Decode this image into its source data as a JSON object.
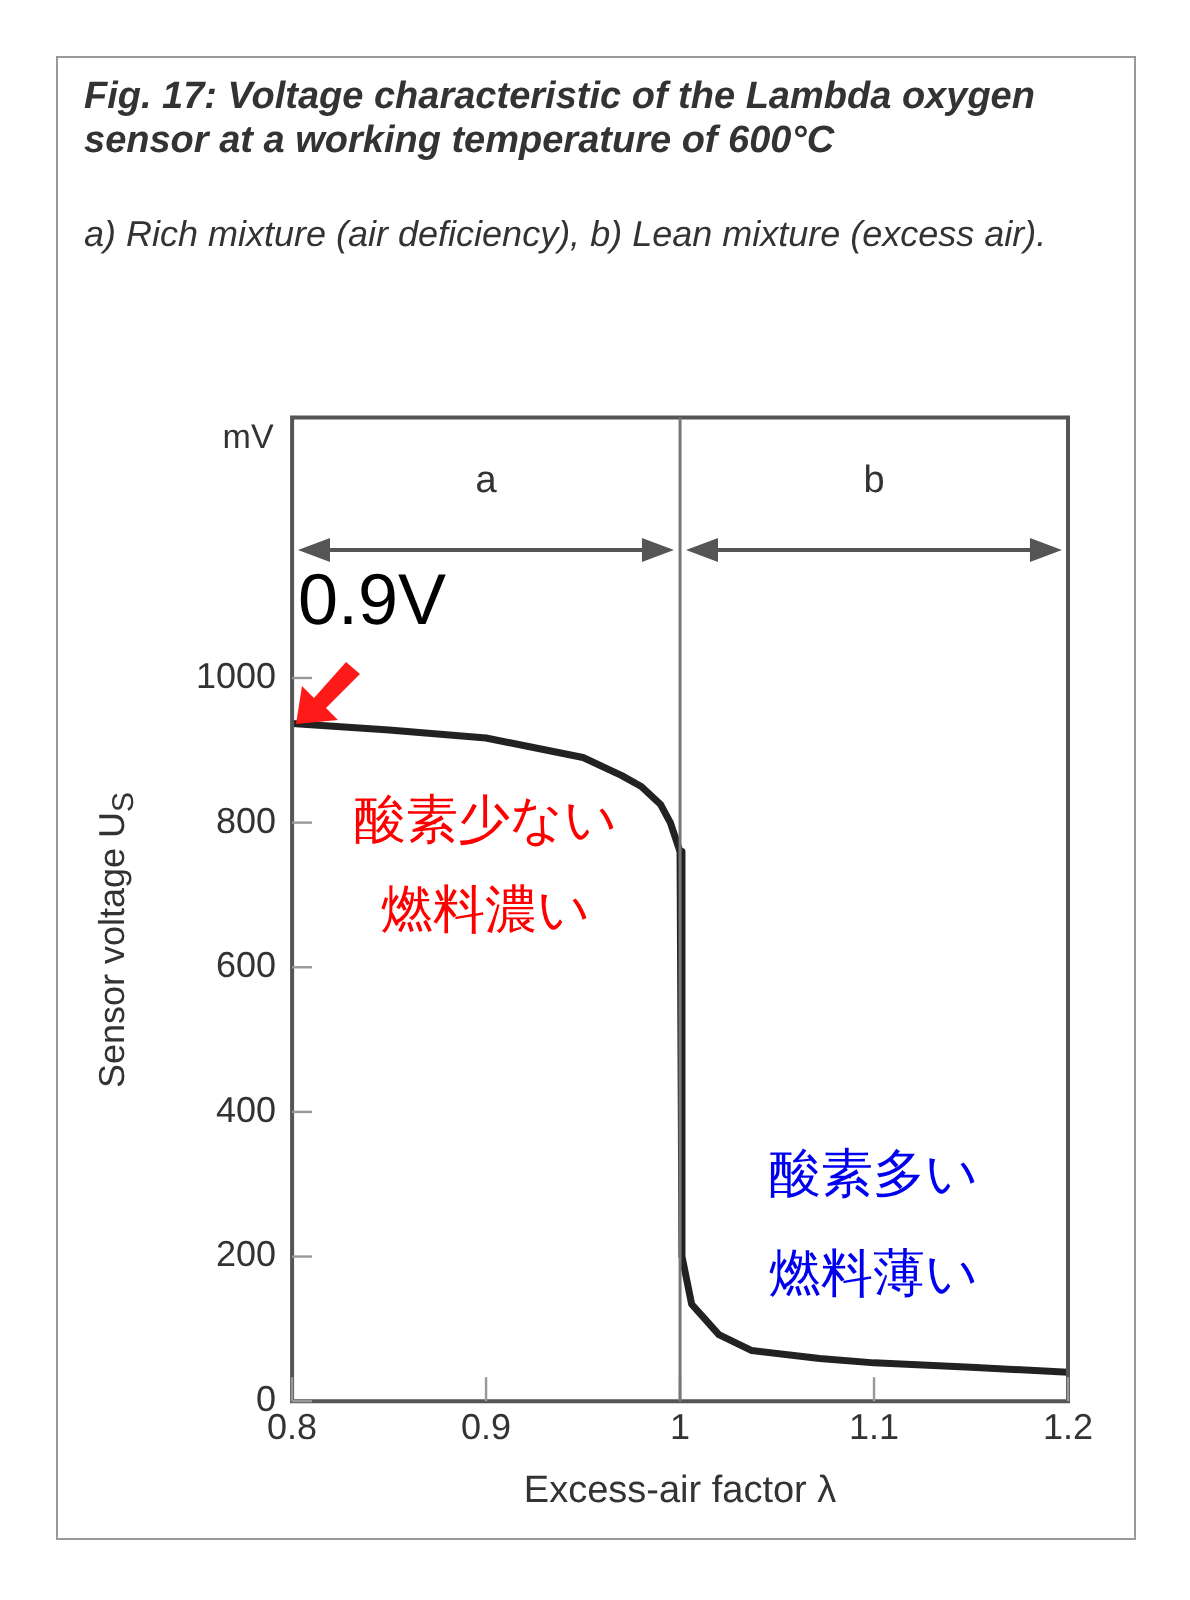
{
  "chart_data": {
    "type": "line",
    "title": "Fig. 17: Voltage characteristic of the Lambda oxygen sensor at a working temperature of 600°C",
    "subtitle": "a) Rich mixture (air deficiency), b) Lean mixture (excess air).",
    "xlabel": "Excess-air factor λ",
    "ylabel": "Sensor voltage U$_{S}$",
    "series": [
      {
        "color": "#222222",
        "x": [
          0.8,
          0.85,
          0.9,
          0.95,
          0.97,
          0.98,
          0.99,
          0.995,
          1.0,
          1.001,
          1.006,
          1.02,
          1.037,
          1.072,
          1.1,
          1.15,
          1.2
        ],
        "values": [
          937,
          928,
          917,
          890,
          865,
          850,
          825,
          800,
          760,
          200,
          134,
          92,
          70,
          59,
          53,
          47,
          40
        ]
      }
    ],
    "xlim": [
      0.8,
      1.2
    ],
    "xticks": [
      0.8,
      0.9,
      1,
      1.1,
      1.2
    ],
    "ylim": [
      0,
      1360
    ],
    "yticks": [
      0,
      200,
      400,
      600,
      800,
      1000
    ],
    "ref_lines": [
      {
        "axis": "x",
        "value": 1,
        "color": "#777777"
      }
    ],
    "annotations": [
      {
        "text": "0.9V",
        "x": 0.8,
        "y": 937
      },
      "a",
      "b",
      "mV",
      "酸素少ない",
      "燃料濃い",
      "酸素多い",
      "燃料薄い"
    ],
    "grid": false,
    "marker": "none",
    "line_style": "solid",
    "legend": false
  }
}
